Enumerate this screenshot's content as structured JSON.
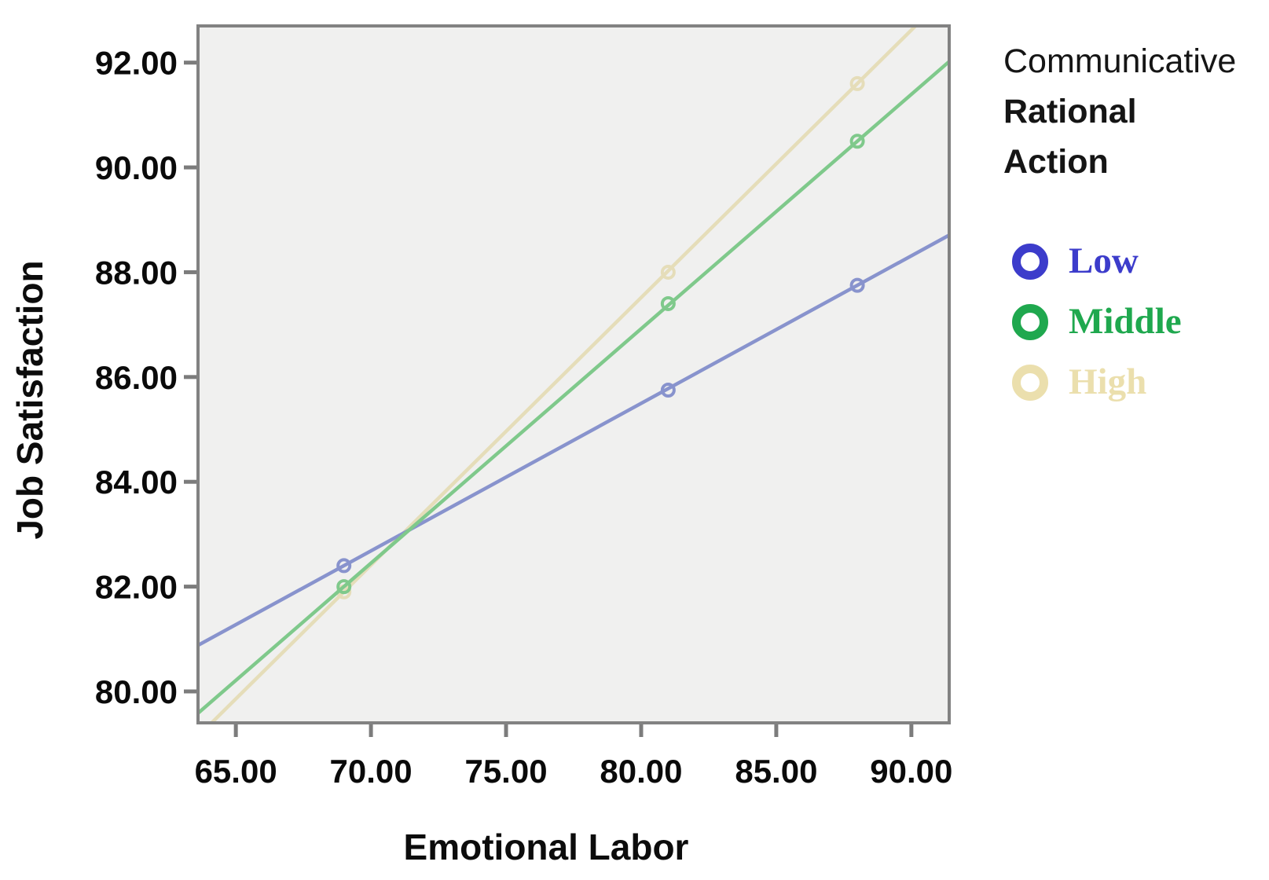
{
  "chart_data": {
    "type": "line",
    "title": "",
    "xlabel": "Emotional Labor",
    "ylabel": "Job Satisfaction",
    "xlim": [
      63.6,
      91.4
    ],
    "ylim": [
      79.4,
      92.7
    ],
    "grid": false,
    "legend_position": "right-top",
    "legend_title_lines": [
      "Communicative",
      "Rational",
      "Action"
    ],
    "xticks": {
      "values": [
        65,
        70,
        75,
        80,
        85,
        90
      ],
      "labels": [
        "65.00",
        "70.00",
        "75.00",
        "80.00",
        "85.00",
        "90.00"
      ]
    },
    "yticks": {
      "values": [
        80,
        82,
        84,
        86,
        88,
        90,
        92
      ],
      "labels": [
        "80.00",
        "82.00",
        "84.00",
        "86.00",
        "88.00",
        "90.00",
        "92.00"
      ]
    },
    "x": [
      69,
      81,
      88
    ],
    "series": [
      {
        "name": "Low",
        "values": [
          82.4,
          85.75,
          87.75
        ],
        "line_color": "#8893cd",
        "legend_color": "#3c3ccb"
      },
      {
        "name": "Middle",
        "values": [
          82.0,
          87.4,
          90.5
        ],
        "line_color": "#7fc98b",
        "legend_color": "#1fa84e"
      },
      {
        "name": "High",
        "values": [
          81.9,
          88.0,
          91.6
        ],
        "line_color": "#e5ddb9",
        "legend_color": "#ebdfad"
      }
    ],
    "colors": {
      "plot_background": "#f0f0ef",
      "plot_border": "#828282",
      "tick_mark": "#7c7c7c",
      "tick_label": "#0a0a0a"
    }
  }
}
